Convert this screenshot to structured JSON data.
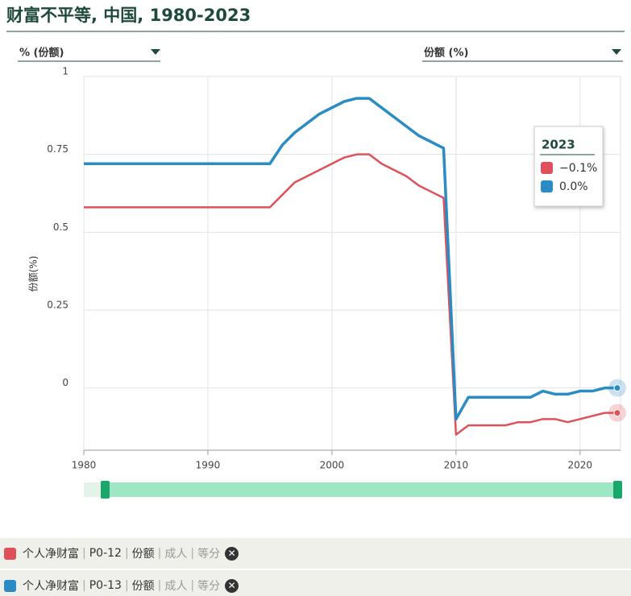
{
  "chart_data": {
    "type": "line",
    "title": "财富不平等, 中国, 1980-2023",
    "left_selector": "% (份额)",
    "right_selector": "份额 (%)",
    "ylabel": "份额(%)",
    "x": [
      1980,
      1981,
      1982,
      1983,
      1984,
      1985,
      1986,
      1987,
      1988,
      1989,
      1990,
      1991,
      1992,
      1993,
      1994,
      1995,
      1996,
      1997,
      1998,
      1999,
      2000,
      2001,
      2002,
      2003,
      2004,
      2005,
      2006,
      2007,
      2008,
      2009,
      2010,
      2011,
      2012,
      2013,
      2014,
      2015,
      2016,
      2017,
      2018,
      2019,
      2020,
      2021,
      2022,
      2023
    ],
    "series": [
      {
        "name": "个人净财富",
        "tags": [
          "P0-12",
          "份额",
          "成人",
          "等分"
        ],
        "color": "#e0505a",
        "values": [
          0.58,
          0.58,
          0.58,
          0.58,
          0.58,
          0.58,
          0.58,
          0.58,
          0.58,
          0.58,
          0.58,
          0.58,
          0.58,
          0.58,
          0.58,
          0.58,
          0.62,
          0.66,
          0.68,
          0.7,
          0.72,
          0.74,
          0.75,
          0.75,
          0.72,
          0.7,
          0.68,
          0.65,
          0.63,
          0.61,
          -0.15,
          -0.12,
          -0.12,
          -0.12,
          -0.12,
          -0.11,
          -0.11,
          -0.1,
          -0.1,
          -0.11,
          -0.1,
          -0.09,
          -0.08,
          -0.08
        ]
      },
      {
        "name": "个人净财富",
        "tags": [
          "P0-13",
          "份额",
          "成人",
          "等分"
        ],
        "color": "#2a8cc4",
        "values": [
          0.72,
          0.72,
          0.72,
          0.72,
          0.72,
          0.72,
          0.72,
          0.72,
          0.72,
          0.72,
          0.72,
          0.72,
          0.72,
          0.72,
          0.72,
          0.72,
          0.78,
          0.82,
          0.85,
          0.88,
          0.9,
          0.92,
          0.93,
          0.93,
          0.9,
          0.87,
          0.84,
          0.81,
          0.79,
          0.77,
          -0.1,
          -0.03,
          -0.03,
          -0.03,
          -0.03,
          -0.03,
          -0.03,
          -0.01,
          -0.02,
          -0.02,
          -0.01,
          -0.01,
          0.0,
          0.0
        ]
      }
    ],
    "tooltip": {
      "title": "2023",
      "labels": [
        "−0.1%",
        "0.0%"
      ]
    },
    "xlim": [
      1980,
      2023
    ],
    "xticks": [
      1980,
      1990,
      2000,
      2010,
      2020
    ],
    "ylim": [
      -0.2,
      1
    ],
    "yticks": [
      0,
      0.25,
      0.5,
      0.75,
      1
    ],
    "grid": true
  }
}
